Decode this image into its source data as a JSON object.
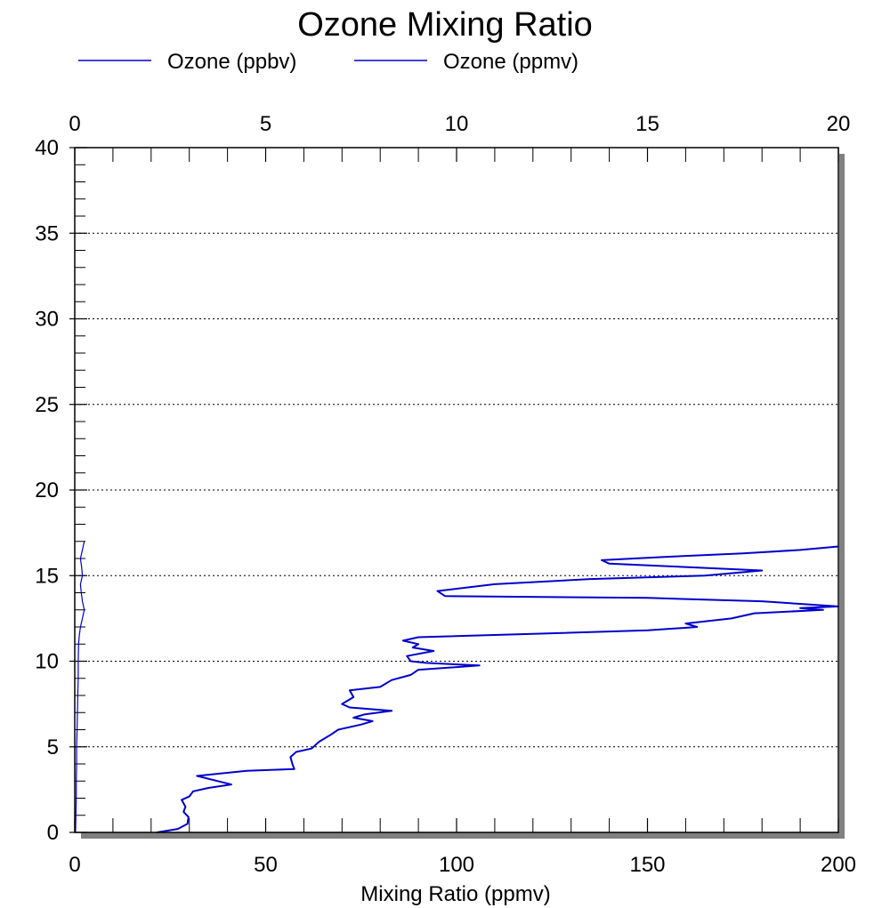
{
  "chart_data": {
    "type": "line",
    "title": "Ozone Mixing Ratio",
    "xlabel": "Mixing Ratio (ppmv)",
    "ylabel": "",
    "xlim_bottom": [
      0,
      200
    ],
    "xlim_top": [
      0,
      20
    ],
    "ylim": [
      0,
      40
    ],
    "x_ticks_bottom": [
      "0",
      "50",
      "100",
      "150",
      "200"
    ],
    "x_ticks_top": [
      "0",
      "5",
      "10",
      "15",
      "20"
    ],
    "y_ticks": [
      "0",
      "5",
      "10",
      "15",
      "20",
      "25",
      "30",
      "35",
      "40"
    ],
    "grid": "horizontal dotted",
    "legend_position": "top-left",
    "series": [
      {
        "name": "Ozone (ppbv)",
        "axis": "bottom",
        "color": "#0000cc",
        "points": [
          [
            21.5,
            0.0
          ],
          [
            27,
            0.2
          ],
          [
            29.5,
            0.5
          ],
          [
            29.8,
            0.9
          ],
          [
            28.5,
            1.2
          ],
          [
            29,
            1.5
          ],
          [
            28,
            1.9
          ],
          [
            30,
            2.1
          ],
          [
            31,
            2.4
          ],
          [
            35,
            2.6
          ],
          [
            41,
            2.8
          ],
          [
            32,
            3.3
          ],
          [
            45,
            3.6
          ],
          [
            57.5,
            3.7
          ],
          [
            57,
            4.0
          ],
          [
            56.5,
            4.4
          ],
          [
            58,
            4.7
          ],
          [
            62,
            4.9
          ],
          [
            64,
            5.3
          ],
          [
            67,
            5.7
          ],
          [
            69,
            6.0
          ],
          [
            75,
            6.3
          ],
          [
            78,
            6.5
          ],
          [
            73,
            6.7
          ],
          [
            76,
            6.9
          ],
          [
            83,
            7.1
          ],
          [
            72,
            7.3
          ],
          [
            70,
            7.5
          ],
          [
            73,
            7.9
          ],
          [
            72,
            8.3
          ],
          [
            80,
            8.5
          ],
          [
            83,
            8.9
          ],
          [
            88,
            9.2
          ],
          [
            90,
            9.5
          ],
          [
            106,
            9.75
          ],
          [
            92,
            9.9
          ],
          [
            88,
            10.0
          ],
          [
            87,
            10.3
          ],
          [
            94,
            10.6
          ],
          [
            88.5,
            10.8
          ],
          [
            90,
            11.0
          ],
          [
            86,
            11.2
          ],
          [
            90,
            11.4
          ],
          [
            120,
            11.6
          ],
          [
            150,
            11.8
          ],
          [
            163,
            12.0
          ],
          [
            160,
            12.2
          ],
          [
            172,
            12.5
          ],
          [
            178,
            12.8
          ],
          [
            196,
            13.0
          ],
          [
            190,
            13.1
          ],
          [
            200,
            13.2
          ],
          [
            180,
            13.5
          ],
          [
            150,
            13.7
          ],
          [
            97,
            13.8
          ],
          [
            95,
            14.1
          ],
          [
            110,
            14.5
          ],
          [
            135,
            14.8
          ],
          [
            165,
            15.0
          ],
          [
            180,
            15.3
          ],
          [
            160,
            15.5
          ],
          [
            140,
            15.7
          ],
          [
            138,
            15.9
          ],
          [
            155,
            16.1
          ],
          [
            175,
            16.3
          ],
          [
            190,
            16.5
          ],
          [
            200,
            16.7
          ]
        ]
      },
      {
        "name": "Ozone (ppmv)",
        "axis": "top",
        "color": "#0000cc",
        "points": [
          [
            0.02,
            0.0
          ],
          [
            0.03,
            1.0
          ],
          [
            0.04,
            2.0
          ],
          [
            0.04,
            3.0
          ],
          [
            0.05,
            4.0
          ],
          [
            0.05,
            5.0
          ],
          [
            0.06,
            6.0
          ],
          [
            0.07,
            7.0
          ],
          [
            0.08,
            8.0
          ],
          [
            0.09,
            9.0
          ],
          [
            0.09,
            10.0
          ],
          [
            0.1,
            11.0
          ],
          [
            0.12,
            11.5
          ],
          [
            0.15,
            12.0
          ],
          [
            0.2,
            12.5
          ],
          [
            0.25,
            13.0
          ],
          [
            0.2,
            13.5
          ],
          [
            0.17,
            14.0
          ],
          [
            0.15,
            14.5
          ],
          [
            0.2,
            15.0
          ],
          [
            0.18,
            15.5
          ],
          [
            0.15,
            16.0
          ],
          [
            0.2,
            16.5
          ],
          [
            0.25,
            17.0
          ]
        ]
      }
    ]
  }
}
